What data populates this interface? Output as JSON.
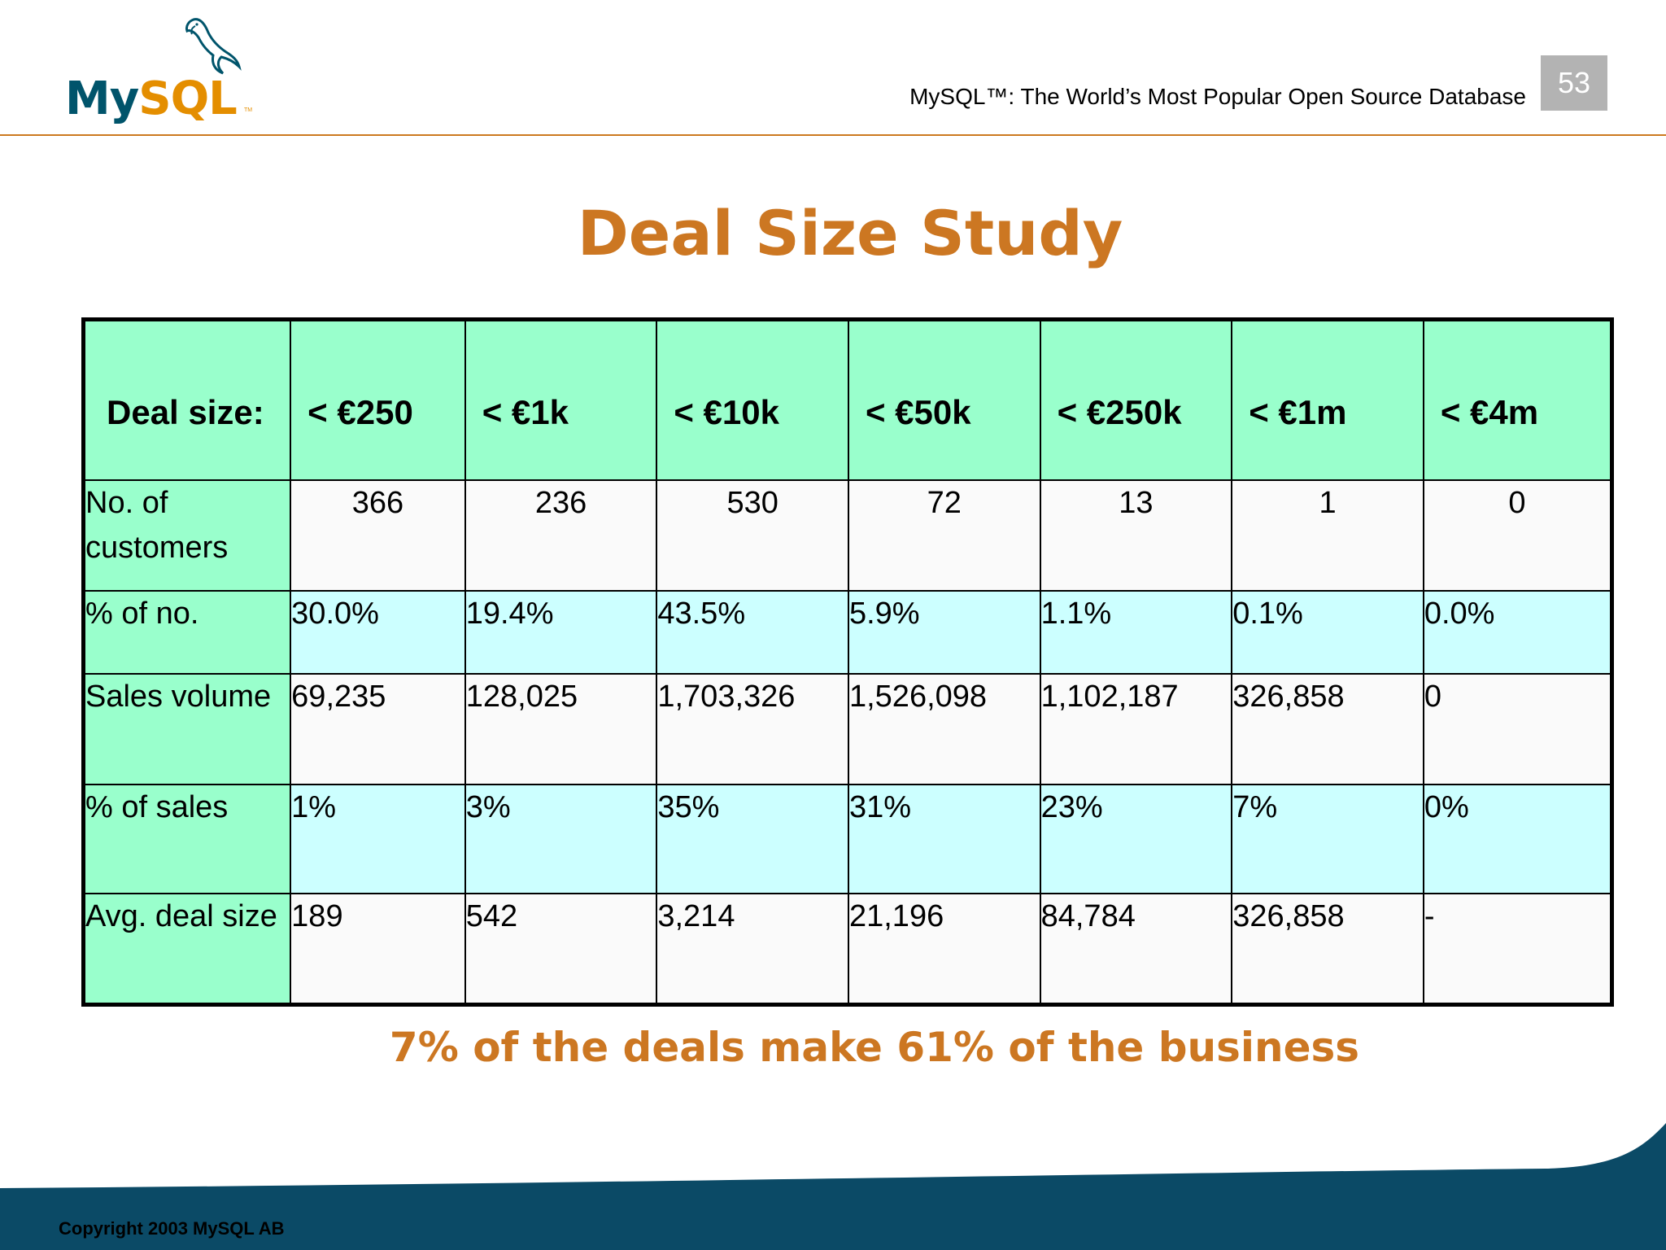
{
  "header": {
    "logo_text": "MySQL",
    "logo_tm": "TM",
    "tagline": "MySQL™: The World’s Most Popular Open Source Database",
    "slide_number": "53"
  },
  "title": "Deal Size Study",
  "table": {
    "columns": [
      "Deal size:",
      "< €250",
      "< €1k",
      "< €10k",
      "< €50k",
      "< €250k",
      "< €1m",
      "< €4m"
    ],
    "rows": [
      {
        "label": "No. of customers",
        "values": [
          "366",
          "236",
          "530",
          "72",
          "13",
          "1",
          "0"
        ]
      },
      {
        "label": "% of no.",
        "values": [
          "30.0%",
          "19.4%",
          "43.5%",
          "5.9%",
          "1.1%",
          "0.1%",
          "0.0%"
        ]
      },
      {
        "label": "Sales volume",
        "values": [
          "69,235",
          "128,025",
          "1,703,326",
          "1,526,098",
          "1,102,187",
          "326,858",
          "0"
        ]
      },
      {
        "label": "% of sales",
        "values": [
          "1%",
          "3%",
          "35%",
          "31%",
          "23%",
          "7%",
          "0%"
        ]
      },
      {
        "label": "Avg. deal size",
        "values": [
          "189",
          "542",
          "3,214",
          "21,196",
          "84,784",
          "326,858",
          "-"
        ]
      }
    ]
  },
  "summary": "7% of the deals make 61% of the business",
  "footer": {
    "copyright": "Copyright 2003 MySQL AB"
  },
  "colors": {
    "accent_orange": "#cc7722",
    "header_green": "#99ffcc",
    "row_cyan": "#ccffff",
    "footer_navy": "#0b4a66"
  }
}
